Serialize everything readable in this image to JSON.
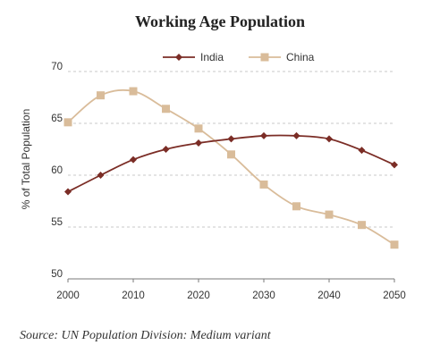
{
  "chart_data": {
    "type": "line",
    "title": "Working Age Population",
    "xlabel": "",
    "ylabel": "% of Total Population",
    "x": [
      2000,
      2005,
      2010,
      2015,
      2020,
      2025,
      2030,
      2035,
      2040,
      2045,
      2050
    ],
    "x_ticks": [
      2000,
      2010,
      2020,
      2030,
      2040,
      2050
    ],
    "y_ticks": [
      50,
      55,
      60,
      65,
      70
    ],
    "xlim": [
      2000,
      2050
    ],
    "ylim": [
      50,
      70
    ],
    "grid": "horizontal dashed",
    "legend_position": "top",
    "series": [
      {
        "name": "India",
        "color": "#7b2d26",
        "marker": "diamond",
        "values": [
          58.4,
          60.0,
          61.5,
          62.5,
          63.1,
          63.5,
          63.8,
          63.8,
          63.5,
          62.4,
          61.0
        ]
      },
      {
        "name": "China",
        "color": "#d9bc9a",
        "marker": "square",
        "values": [
          65.1,
          67.7,
          68.1,
          66.4,
          64.5,
          62.0,
          59.1,
          57.0,
          56.2,
          55.2,
          53.3
        ]
      }
    ]
  },
  "footer": {
    "source": "Source: UN Population Division: Medium variant"
  }
}
